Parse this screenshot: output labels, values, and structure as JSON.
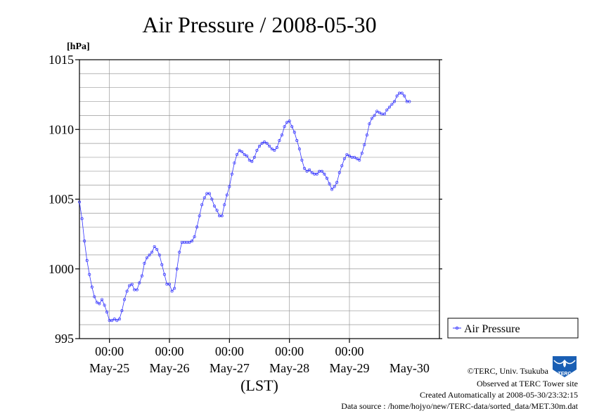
{
  "chart_data": {
    "type": "line",
    "title": "Air Pressure / 2008-05-30",
    "ylabel_unit": "[hPa]",
    "xlabel": "(LST)",
    "ylim": [
      995,
      1015
    ],
    "yticks": [
      995,
      1000,
      1005,
      1010,
      1015
    ],
    "x_range": [
      "2008-05-24T12:00",
      "2008-05-30T12:00"
    ],
    "x_tick_time_labels": [
      "00:00",
      "00:00",
      "00:00",
      "00:00",
      "00:00"
    ],
    "x_tick_dates": [
      "2008-05-25T00:00",
      "2008-05-26T00:00",
      "2008-05-27T00:00",
      "2008-05-28T00:00",
      "2008-05-29T00:00"
    ],
    "x_day_labels": [
      "May-25",
      "May-26",
      "May-27",
      "May-28",
      "May-29",
      "May-30"
    ],
    "grid": true,
    "legend_position": "bottom-right",
    "series": [
      {
        "name": "Air Pressure",
        "color": "#3333ff",
        "marker": "circle",
        "points": [
          [
            "2008-05-24T12:00",
            1004.8
          ],
          [
            "2008-05-24T13:00",
            1003.6
          ],
          [
            "2008-05-24T14:00",
            1002.0
          ],
          [
            "2008-05-24T15:00",
            1000.6
          ],
          [
            "2008-05-24T16:00",
            999.6
          ],
          [
            "2008-05-24T17:00",
            998.7
          ],
          [
            "2008-05-24T18:00",
            998.0
          ],
          [
            "2008-05-24T19:00",
            997.6
          ],
          [
            "2008-05-24T20:00",
            997.5
          ],
          [
            "2008-05-24T21:00",
            997.8
          ],
          [
            "2008-05-24T22:00",
            997.4
          ],
          [
            "2008-05-24T23:00",
            996.9
          ],
          [
            "2008-05-25T00:00",
            996.3
          ],
          [
            "2008-05-25T01:00",
            996.3
          ],
          [
            "2008-05-25T02:00",
            996.4
          ],
          [
            "2008-05-25T03:00",
            996.3
          ],
          [
            "2008-05-25T04:00",
            996.4
          ],
          [
            "2008-05-25T05:00",
            997.0
          ],
          [
            "2008-05-25T06:00",
            997.8
          ],
          [
            "2008-05-25T07:00",
            998.4
          ],
          [
            "2008-05-25T08:00",
            998.8
          ],
          [
            "2008-05-25T09:00",
            998.9
          ],
          [
            "2008-05-25T10:00",
            998.5
          ],
          [
            "2008-05-25T11:00",
            998.5
          ],
          [
            "2008-05-25T12:00",
            999.0
          ],
          [
            "2008-05-25T13:00",
            999.5
          ],
          [
            "2008-05-25T14:00",
            1000.4
          ],
          [
            "2008-05-25T15:00",
            1000.8
          ],
          [
            "2008-05-25T16:00",
            1001.0
          ],
          [
            "2008-05-25T17:00",
            1001.2
          ],
          [
            "2008-05-25T18:00",
            1001.6
          ],
          [
            "2008-05-25T19:00",
            1001.4
          ],
          [
            "2008-05-25T20:00",
            1001.0
          ],
          [
            "2008-05-25T21:00",
            1000.3
          ],
          [
            "2008-05-25T22:00",
            999.6
          ],
          [
            "2008-05-25T23:00",
            998.9
          ],
          [
            "2008-05-26T00:00",
            998.9
          ],
          [
            "2008-05-26T01:00",
            998.4
          ],
          [
            "2008-05-26T02:00",
            998.6
          ],
          [
            "2008-05-26T03:00",
            1000.0
          ],
          [
            "2008-05-26T04:00",
            1001.2
          ],
          [
            "2008-05-26T05:00",
            1001.9
          ],
          [
            "2008-05-26T06:00",
            1001.9
          ],
          [
            "2008-05-26T07:00",
            1001.9
          ],
          [
            "2008-05-26T08:00",
            1001.9
          ],
          [
            "2008-05-26T09:00",
            1002.0
          ],
          [
            "2008-05-26T10:00",
            1002.3
          ],
          [
            "2008-05-26T11:00",
            1003.0
          ],
          [
            "2008-05-26T12:00",
            1003.8
          ],
          [
            "2008-05-26T13:00",
            1004.6
          ],
          [
            "2008-05-26T14:00",
            1005.1
          ],
          [
            "2008-05-26T15:00",
            1005.4
          ],
          [
            "2008-05-26T16:00",
            1005.4
          ],
          [
            "2008-05-26T17:00",
            1005.0
          ],
          [
            "2008-05-26T18:00",
            1004.5
          ],
          [
            "2008-05-26T19:00",
            1004.2
          ],
          [
            "2008-05-26T20:00",
            1003.8
          ],
          [
            "2008-05-26T21:00",
            1003.8
          ],
          [
            "2008-05-26T22:00",
            1004.6
          ],
          [
            "2008-05-26T23:00",
            1005.3
          ],
          [
            "2008-05-27T00:00",
            1005.9
          ],
          [
            "2008-05-27T01:00",
            1006.8
          ],
          [
            "2008-05-27T02:00",
            1007.6
          ],
          [
            "2008-05-27T03:00",
            1008.2
          ],
          [
            "2008-05-27T04:00",
            1008.5
          ],
          [
            "2008-05-27T05:00",
            1008.4
          ],
          [
            "2008-05-27T06:00",
            1008.2
          ],
          [
            "2008-05-27T07:00",
            1008.1
          ],
          [
            "2008-05-27T08:00",
            1007.8
          ],
          [
            "2008-05-27T09:00",
            1007.7
          ],
          [
            "2008-05-27T10:00",
            1008.0
          ],
          [
            "2008-05-27T11:00",
            1008.5
          ],
          [
            "2008-05-27T12:00",
            1008.8
          ],
          [
            "2008-05-27T13:00",
            1009.0
          ],
          [
            "2008-05-27T14:00",
            1009.1
          ],
          [
            "2008-05-27T15:00",
            1009.0
          ],
          [
            "2008-05-27T16:00",
            1008.8
          ],
          [
            "2008-05-27T17:00",
            1008.6
          ],
          [
            "2008-05-27T18:00",
            1008.5
          ],
          [
            "2008-05-27T19:00",
            1008.7
          ],
          [
            "2008-05-27T20:00",
            1009.2
          ],
          [
            "2008-05-27T21:00",
            1009.6
          ],
          [
            "2008-05-27T22:00",
            1010.2
          ],
          [
            "2008-05-27T23:00",
            1010.5
          ],
          [
            "2008-05-28T00:00",
            1010.6
          ],
          [
            "2008-05-28T01:00",
            1010.2
          ],
          [
            "2008-05-28T02:00",
            1009.8
          ],
          [
            "2008-05-28T03:00",
            1009.2
          ],
          [
            "2008-05-28T04:00",
            1008.6
          ],
          [
            "2008-05-28T05:00",
            1007.8
          ],
          [
            "2008-05-28T06:00",
            1007.2
          ],
          [
            "2008-05-28T07:00",
            1007.0
          ],
          [
            "2008-05-28T08:00",
            1007.1
          ],
          [
            "2008-05-28T09:00",
            1006.9
          ],
          [
            "2008-05-28T10:00",
            1006.8
          ],
          [
            "2008-05-28T11:00",
            1006.8
          ],
          [
            "2008-05-28T12:00",
            1007.0
          ],
          [
            "2008-05-28T13:00",
            1007.0
          ],
          [
            "2008-05-28T14:00",
            1006.8
          ],
          [
            "2008-05-28T15:00",
            1006.5
          ],
          [
            "2008-05-28T16:00",
            1006.1
          ],
          [
            "2008-05-28T17:00",
            1005.7
          ],
          [
            "2008-05-28T18:00",
            1005.9
          ],
          [
            "2008-05-28T19:00",
            1006.2
          ],
          [
            "2008-05-28T20:00",
            1006.9
          ],
          [
            "2008-05-28T21:00",
            1007.4
          ],
          [
            "2008-05-28T22:00",
            1007.9
          ],
          [
            "2008-05-28T23:00",
            1008.2
          ],
          [
            "2008-05-29T00:00",
            1008.1
          ],
          [
            "2008-05-29T01:00",
            1008.0
          ],
          [
            "2008-05-29T02:00",
            1008.0
          ],
          [
            "2008-05-29T03:00",
            1007.9
          ],
          [
            "2008-05-29T04:00",
            1007.8
          ],
          [
            "2008-05-29T05:00",
            1008.3
          ],
          [
            "2008-05-29T06:00",
            1008.9
          ],
          [
            "2008-05-29T07:00",
            1009.6
          ],
          [
            "2008-05-29T08:00",
            1010.4
          ],
          [
            "2008-05-29T09:00",
            1010.8
          ],
          [
            "2008-05-29T10:00",
            1011.0
          ],
          [
            "2008-05-29T11:00",
            1011.3
          ],
          [
            "2008-05-29T12:00",
            1011.2
          ],
          [
            "2008-05-29T13:00",
            1011.1
          ],
          [
            "2008-05-29T14:00",
            1011.1
          ],
          [
            "2008-05-29T15:00",
            1011.4
          ],
          [
            "2008-05-29T16:00",
            1011.6
          ],
          [
            "2008-05-29T17:00",
            1011.8
          ],
          [
            "2008-05-29T18:00",
            1012.0
          ],
          [
            "2008-05-29T19:00",
            1012.4
          ],
          [
            "2008-05-29T20:00",
            1012.6
          ],
          [
            "2008-05-29T21:00",
            1012.6
          ],
          [
            "2008-05-29T22:00",
            1012.4
          ],
          [
            "2008-05-29T23:00",
            1012.0
          ],
          [
            "2008-05-30T00:00",
            1012.0
          ]
        ]
      }
    ]
  },
  "legend": {
    "label": "Air Pressure"
  },
  "footer": {
    "copyright": "©TERC, Univ. Tsukuba",
    "observed": "Observed at TERC Tower site",
    "created": "Created Automatically at 2008-05-30/23:32:15",
    "source": "Data source : /home/hojyo/new/TERC-data/sorted_data/MET.30m.dat"
  },
  "logo": {
    "text": "TERC",
    "color": "#1a5fb4"
  }
}
